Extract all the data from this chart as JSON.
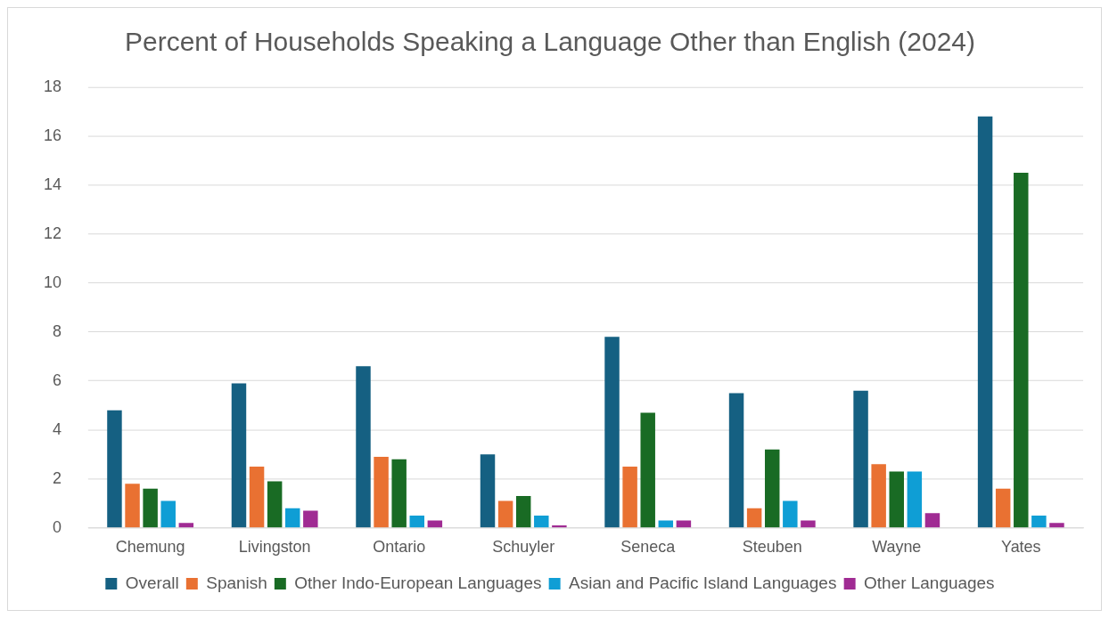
{
  "chart_data": {
    "type": "bar",
    "title": "Percent of Households Speaking a Language Other than English (2024)",
    "categories": [
      "Chemung",
      "Livingston",
      "Ontario",
      "Schuyler",
      "Seneca",
      "Steuben",
      "Wayne",
      "Yates"
    ],
    "series": [
      {
        "name": "Overall",
        "color": "#156082",
        "values": [
          4.8,
          5.9,
          6.6,
          3.0,
          7.8,
          5.5,
          5.6,
          16.8
        ]
      },
      {
        "name": "Spanish",
        "color": "#e97132",
        "values": [
          1.8,
          2.5,
          2.9,
          1.1,
          2.5,
          0.8,
          2.6,
          1.6
        ]
      },
      {
        "name": "Other Indo-European Languages",
        "color": "#196b24",
        "values": [
          1.6,
          1.9,
          2.8,
          1.3,
          4.7,
          3.2,
          2.3,
          14.5
        ]
      },
      {
        "name": "Asian and Pacific Island Languages",
        "color": "#0f9ed5",
        "values": [
          1.1,
          0.8,
          0.5,
          0.5,
          0.3,
          1.1,
          2.3,
          0.5
        ]
      },
      {
        "name": "Other Languages",
        "color": "#a02b93",
        "values": [
          0.2,
          0.7,
          0.3,
          0.1,
          0.3,
          0.3,
          0.6,
          0.2
        ]
      }
    ],
    "ylim": [
      0,
      18
    ],
    "yticks": [
      0,
      2,
      4,
      6,
      8,
      10,
      12,
      14,
      16,
      18
    ],
    "grid": "y",
    "legend": "bottom"
  }
}
